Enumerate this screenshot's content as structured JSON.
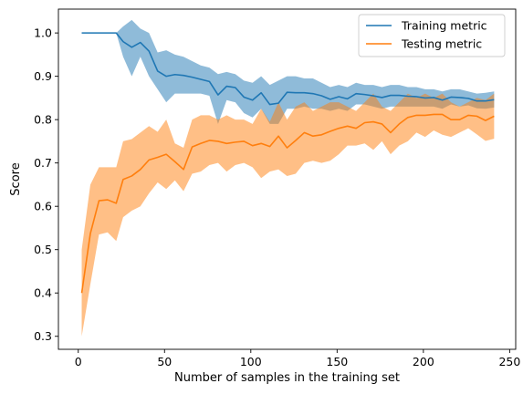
{
  "chart_data": {
    "type": "line",
    "title": "",
    "xlabel": "Number of samples in the training set",
    "ylabel": "Score",
    "xlim": [
      -11.5,
      253.5
    ],
    "ylim": [
      0.27,
      1.055
    ],
    "xticks": [
      0,
      50,
      100,
      150,
      200,
      250
    ],
    "yticks": [
      0.3,
      0.4,
      0.5,
      0.6,
      0.7,
      0.8,
      0.9,
      1.0
    ],
    "xtick_labels": [
      "0",
      "50",
      "100",
      "150",
      "200",
      "250"
    ],
    "ytick_labels": [
      "0.3",
      "0.4",
      "0.5",
      "0.6",
      "0.7",
      "0.8",
      "0.9",
      "1.0"
    ],
    "grid": false,
    "legend_position": "top-right",
    "x": [
      2,
      7,
      12,
      17,
      22,
      26,
      31,
      36,
      41,
      46,
      51,
      56,
      61,
      66,
      71,
      76,
      81,
      86,
      91,
      96,
      101,
      106,
      111,
      116,
      121,
      126,
      131,
      136,
      141,
      146,
      151,
      156,
      161,
      166,
      171,
      176,
      181,
      186,
      191,
      196,
      201,
      206,
      211,
      216,
      221,
      226,
      231,
      236,
      241
    ],
    "series": [
      {
        "name": "Training metric",
        "color": "#1f77b4",
        "band_color": "#1f77b4",
        "mean": [
          1.0,
          1.0,
          1.0,
          1.0,
          1.0,
          0.98,
          0.967,
          0.978,
          0.958,
          0.912,
          0.9,
          0.904,
          0.902,
          0.898,
          0.893,
          0.888,
          0.857,
          0.877,
          0.874,
          0.852,
          0.845,
          0.862,
          0.835,
          0.838,
          0.863,
          0.862,
          0.862,
          0.86,
          0.855,
          0.847,
          0.853,
          0.848,
          0.86,
          0.858,
          0.855,
          0.851,
          0.856,
          0.856,
          0.854,
          0.853,
          0.85,
          0.851,
          0.845,
          0.852,
          0.851,
          0.849,
          0.843,
          0.843,
          0.846
        ],
        "upper": [
          1.0,
          1.0,
          1.0,
          1.0,
          1.0,
          1.015,
          1.03,
          1.01,
          1.0,
          0.955,
          0.96,
          0.95,
          0.945,
          0.935,
          0.925,
          0.92,
          0.905,
          0.91,
          0.905,
          0.89,
          0.885,
          0.9,
          0.88,
          0.89,
          0.9,
          0.9,
          0.895,
          0.895,
          0.885,
          0.875,
          0.88,
          0.875,
          0.885,
          0.88,
          0.88,
          0.875,
          0.88,
          0.88,
          0.875,
          0.875,
          0.87,
          0.87,
          0.865,
          0.87,
          0.87,
          0.865,
          0.86,
          0.862,
          0.865
        ],
        "lower": [
          1.0,
          1.0,
          1.0,
          1.0,
          1.0,
          0.945,
          0.9,
          0.945,
          0.9,
          0.87,
          0.84,
          0.86,
          0.86,
          0.86,
          0.86,
          0.855,
          0.79,
          0.845,
          0.84,
          0.815,
          0.805,
          0.825,
          0.79,
          0.79,
          0.825,
          0.825,
          0.83,
          0.825,
          0.825,
          0.82,
          0.825,
          0.82,
          0.835,
          0.835,
          0.83,
          0.825,
          0.83,
          0.83,
          0.83,
          0.83,
          0.83,
          0.83,
          0.825,
          0.835,
          0.83,
          0.833,
          0.826,
          0.825,
          0.828
        ]
      },
      {
        "name": "Testing metric",
        "color": "#ff7f0e",
        "band_color": "#ff7f0e",
        "mean": [
          0.4,
          0.537,
          0.613,
          0.615,
          0.607,
          0.662,
          0.67,
          0.685,
          0.707,
          0.713,
          0.72,
          0.703,
          0.685,
          0.737,
          0.745,
          0.752,
          0.75,
          0.745,
          0.748,
          0.75,
          0.74,
          0.745,
          0.738,
          0.762,
          0.735,
          0.752,
          0.77,
          0.762,
          0.765,
          0.773,
          0.78,
          0.785,
          0.78,
          0.793,
          0.795,
          0.79,
          0.77,
          0.79,
          0.805,
          0.81,
          0.81,
          0.812,
          0.812,
          0.8,
          0.8,
          0.81,
          0.808,
          0.798,
          0.808
        ],
        "upper": [
          0.5,
          0.65,
          0.69,
          0.69,
          0.69,
          0.75,
          0.755,
          0.77,
          0.785,
          0.772,
          0.8,
          0.745,
          0.735,
          0.8,
          0.81,
          0.81,
          0.8,
          0.81,
          0.8,
          0.8,
          0.79,
          0.825,
          0.795,
          0.84,
          0.8,
          0.83,
          0.84,
          0.82,
          0.83,
          0.84,
          0.84,
          0.83,
          0.82,
          0.84,
          0.86,
          0.83,
          0.82,
          0.84,
          0.86,
          0.85,
          0.86,
          0.85,
          0.86,
          0.84,
          0.83,
          0.84,
          0.85,
          0.845,
          0.86
        ],
        "lower": [
          0.3,
          0.42,
          0.535,
          0.54,
          0.52,
          0.575,
          0.59,
          0.6,
          0.63,
          0.655,
          0.64,
          0.66,
          0.635,
          0.675,
          0.68,
          0.695,
          0.7,
          0.68,
          0.695,
          0.7,
          0.69,
          0.665,
          0.68,
          0.685,
          0.67,
          0.675,
          0.7,
          0.705,
          0.7,
          0.705,
          0.72,
          0.74,
          0.74,
          0.745,
          0.73,
          0.75,
          0.72,
          0.74,
          0.75,
          0.77,
          0.76,
          0.775,
          0.765,
          0.76,
          0.77,
          0.78,
          0.766,
          0.751,
          0.756
        ]
      }
    ]
  }
}
